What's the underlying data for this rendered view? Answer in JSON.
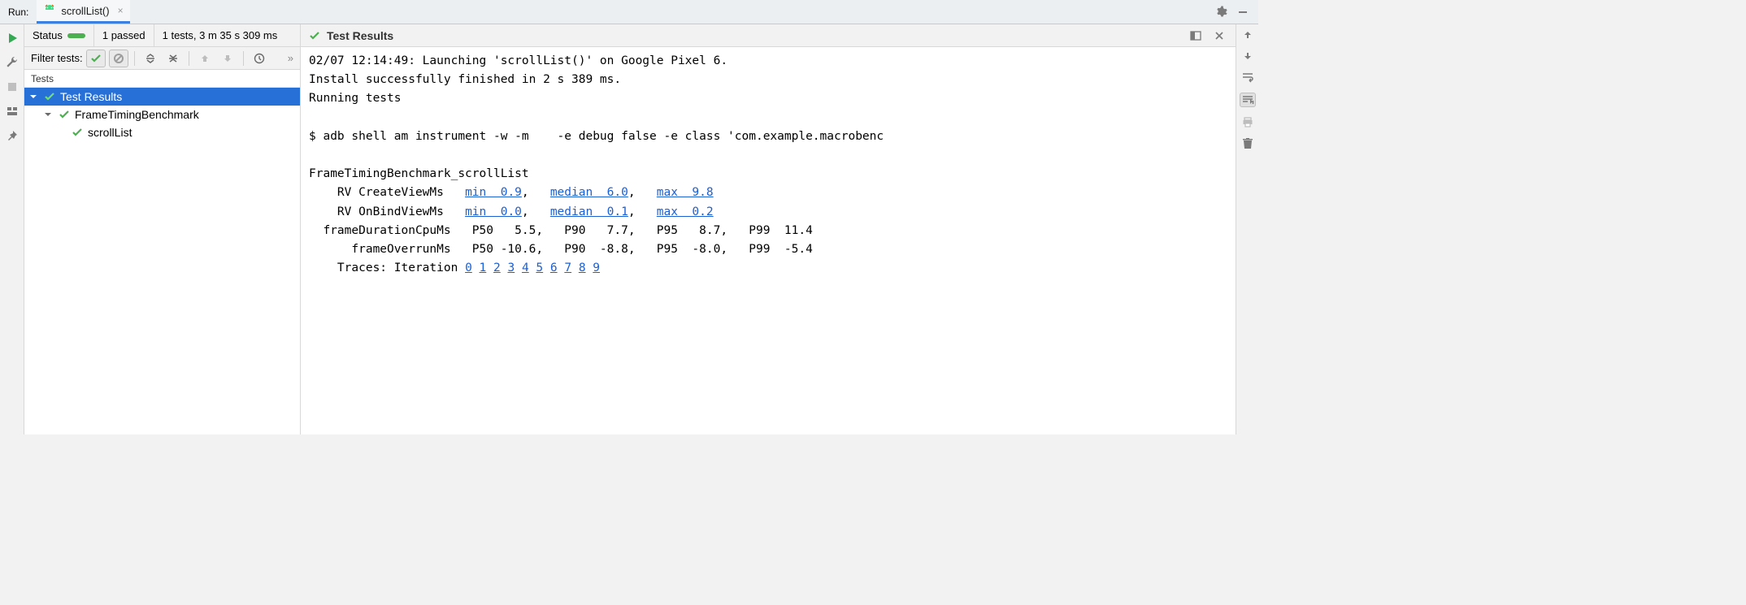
{
  "colors": {
    "accent": "#2770d8",
    "link": "#1a5fd6",
    "green": "#4caf50",
    "gray_icon": "#7a7a7a",
    "panel_bg": "#f2f2f2",
    "border": "#d8d8d8",
    "run_green": "#34a853"
  },
  "tabbar": {
    "run_label": "Run:",
    "tab_label": "scrollList()",
    "close_glyph": "×"
  },
  "status": {
    "label": "Status",
    "passed": "1 passed",
    "summary": "1 tests, 3 m 35 s 309 ms"
  },
  "filter": {
    "label": "Filter tests:",
    "more": "»"
  },
  "tests": {
    "header": "Tests",
    "root": "Test Results",
    "suite": "FrameTimingBenchmark",
    "case": "scrollList"
  },
  "crumb": {
    "title": "Test Results"
  },
  "console": {
    "line1": "02/07 12:14:49: Launching 'scrollList()' on Google Pixel 6.",
    "line2": "Install successfully finished in 2 s 389 ms.",
    "line3": "Running tests",
    "blank": "",
    "line4": "$ adb shell am instrument -w -m    -e debug false -e class 'com.example.macrobenc",
    "line5": "FrameTimingBenchmark_scrollList",
    "rv_create": {
      "label": "    RV CreateViewMs   ",
      "min": "min  0.9",
      "median": "median  6.0",
      "max": "max  9.8"
    },
    "rv_bind": {
      "label": "    RV OnBindViewMs   ",
      "min": "min  0.0",
      "median": "median  0.1",
      "max": "max  0.2"
    },
    "cpu": "  frameDurationCpuMs   P50   5.5,   P90   7.7,   P95   8.7,   P99  11.4",
    "over": "      frameOverrunMs   P50 -10.6,   P90  -8.8,   P95  -8.0,   P99  -5.4",
    "traces_label": "    Traces: Iteration ",
    "traces": [
      "0",
      "1",
      "2",
      "3",
      "4",
      "5",
      "6",
      "7",
      "8",
      "9"
    ]
  }
}
